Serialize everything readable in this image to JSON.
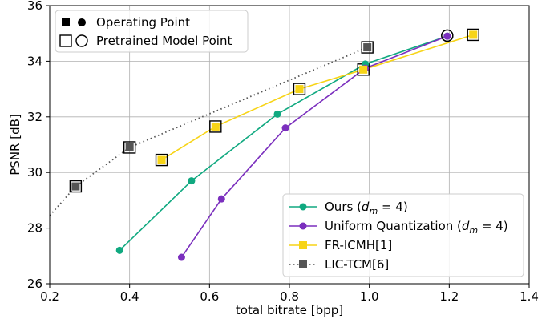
{
  "chart_data": {
    "type": "line",
    "xlabel": "total bitrate [bpp]",
    "ylabel": "PSNR [dB]",
    "xlim": [
      0.2,
      1.4
    ],
    "ylim": [
      26,
      36
    ],
    "xticks": [
      "0.2",
      "0.4",
      "0.6",
      "0.8",
      "1.0",
      "1.2",
      "1.4"
    ],
    "yticks": [
      "26",
      "28",
      "30",
      "32",
      "34",
      "36"
    ],
    "grid": true,
    "marker_legend": {
      "placement": "top-left",
      "entries": [
        {
          "label": "Operating Point",
          "style": "filled"
        },
        {
          "label": "Pretrained Model Point",
          "style": "hollow"
        }
      ]
    },
    "legend": {
      "placement": "bottom-right",
      "entries": [
        {
          "pre": "Ours (",
          "math": "d",
          "sub": "m",
          "post": " = 4)",
          "color": "#10a980",
          "marker": "circle",
          "dashed": false
        },
        {
          "pre": "Uniform Quantization (",
          "math": "d",
          "sub": "m",
          "post": " = 4)",
          "color": "#7b2fbe",
          "marker": "circle",
          "dashed": false
        },
        {
          "pre": "FR-ICMH[1]",
          "math": "",
          "sub": "",
          "post": "",
          "color": "#f7d417",
          "marker": "square",
          "dashed": false
        },
        {
          "pre": "LIC-TCM[6]",
          "math": "",
          "sub": "",
          "post": "",
          "color": "#555555",
          "marker": "square",
          "dashed": true
        }
      ]
    },
    "series": [
      {
        "color": "#10a980",
        "marker": "circle",
        "dashed": false,
        "points": [
          [
            0.375,
            27.2
          ],
          [
            0.555,
            29.7
          ],
          [
            0.77,
            32.1
          ],
          [
            0.99,
            33.9
          ],
          [
            1.195,
            34.9
          ]
        ],
        "pretrained": [
          [
            1.195,
            34.92
          ]
        ]
      },
      {
        "color": "#7b2fbe",
        "marker": "circle",
        "dashed": false,
        "points": [
          [
            0.53,
            26.95
          ],
          [
            0.63,
            29.05
          ],
          [
            0.79,
            31.6
          ],
          [
            0.99,
            33.75
          ],
          [
            1.195,
            34.9
          ]
        ],
        "pretrained": [
          [
            1.195,
            34.92
          ]
        ]
      },
      {
        "color": "#f7d417",
        "marker": "square",
        "dashed": false,
        "points": [
          [
            0.48,
            30.45
          ],
          [
            0.615,
            31.65
          ],
          [
            0.825,
            33.0
          ],
          [
            0.985,
            33.7
          ],
          [
            1.26,
            34.95
          ]
        ],
        "pretrained": [
          [
            0.48,
            30.45
          ],
          [
            0.615,
            31.65
          ],
          [
            0.825,
            33.0
          ],
          [
            0.985,
            33.7
          ],
          [
            1.26,
            34.95
          ]
        ]
      },
      {
        "color": "#555555",
        "marker": "square",
        "dashed": true,
        "points": [
          [
            0.2,
            28.45
          ],
          [
            0.265,
            29.5
          ],
          [
            0.4,
            30.9
          ],
          [
            0.995,
            34.5
          ]
        ],
        "hide_marker_at": [
          0
        ],
        "pretrained": [
          [
            0.265,
            29.5
          ],
          [
            0.4,
            30.9
          ],
          [
            0.995,
            34.5
          ]
        ]
      }
    ]
  }
}
